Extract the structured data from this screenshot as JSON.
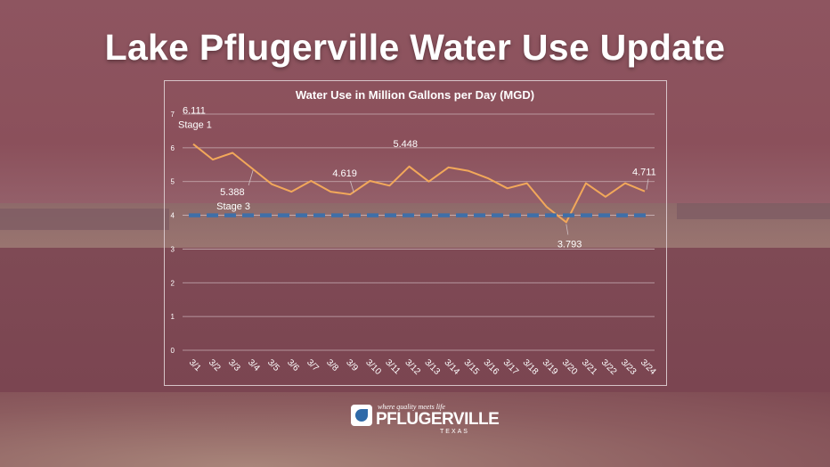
{
  "slide": {
    "title": "Lake Pflugerville Water Use Update"
  },
  "logo": {
    "tagline": "where quality meets life",
    "name": "PFLUGERVILLE",
    "sub": "TEXAS"
  },
  "colors": {
    "line": "#f2a85a",
    "threshold": "#3f6fa8",
    "grid": "#d9c7cb",
    "text": "#ffffff"
  },
  "chart_data": {
    "type": "line",
    "title": "Water Use in Million Gallons per Day (MGD)",
    "xlabel": "",
    "ylabel": "",
    "ylim": [
      0,
      7
    ],
    "yticks": [
      0,
      1,
      2,
      3,
      4,
      5,
      6,
      7
    ],
    "grid": true,
    "categories": [
      "3/1",
      "3/2",
      "3/3",
      "3/4",
      "3/5",
      "3/6",
      "3/7",
      "3/8",
      "3/9",
      "3/10",
      "3/11",
      "3/12",
      "3/13",
      "3/14",
      "3/15",
      "3/16",
      "3/17",
      "3/18",
      "3/19",
      "3/20",
      "3/21",
      "3/22",
      "3/23",
      "3/24"
    ],
    "series": [
      {
        "style": "solid",
        "values": [
          6.111,
          5.65,
          5.85,
          5.388,
          4.92,
          4.7,
          5.02,
          4.7,
          4.619,
          5.02,
          4.88,
          5.448,
          5.0,
          5.42,
          5.32,
          5.1,
          4.8,
          4.95,
          4.25,
          3.793,
          4.95,
          4.55,
          4.95,
          4.711
        ]
      },
      {
        "style": "dashed",
        "values": [
          4,
          4,
          4,
          4,
          4,
          4,
          4,
          4,
          4,
          4,
          4,
          4,
          4,
          4,
          4,
          4,
          4,
          4,
          4,
          4,
          4,
          4,
          4,
          4
        ]
      }
    ],
    "annotations": [
      {
        "index": 0,
        "text": "6.111"
      },
      {
        "index": 0,
        "text": "Stage 1"
      },
      {
        "index": 3,
        "text": "5.388"
      },
      {
        "index": 3,
        "text": "Stage 3"
      },
      {
        "index": 8,
        "text": "4.619"
      },
      {
        "index": 11,
        "text": "5.448"
      },
      {
        "index": 19,
        "text": "3.793"
      },
      {
        "index": 23,
        "text": "4.711"
      }
    ]
  }
}
